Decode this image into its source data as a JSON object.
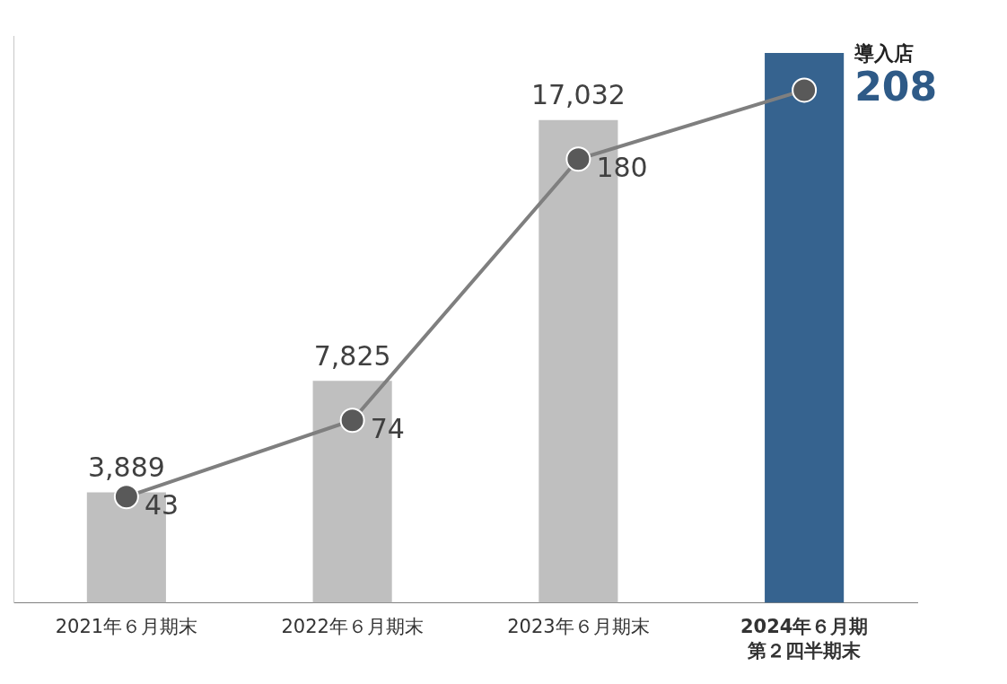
{
  "chart_data": {
    "type": "bar",
    "categories": [
      "2021年６月期末",
      "2022年６月期末",
      "2023年６月期末",
      "2024年６月期\n第２四半期末"
    ],
    "series": [
      {
        "type": "bar",
        "colors": [
          "#bfbfbf",
          "#bfbfbf",
          "#bfbfbf",
          "#36638f"
        ],
        "values": [
          3889,
          7825,
          17032,
          19400
        ],
        "value_labels": [
          "3,889",
          "7,825",
          "17,032",
          null
        ]
      },
      {
        "type": "line",
        "axis": "y2",
        "color": "#7f7f7f",
        "marker": "circle",
        "values": [
          43,
          74,
          180,
          208
        ]
      }
    ],
    "annotation": "導入店",
    "ylim": [
      0,
      20000
    ],
    "y2lim": [
      0,
      230
    ],
    "grid": false,
    "tick_labels": false,
    "data_labels": true
  }
}
